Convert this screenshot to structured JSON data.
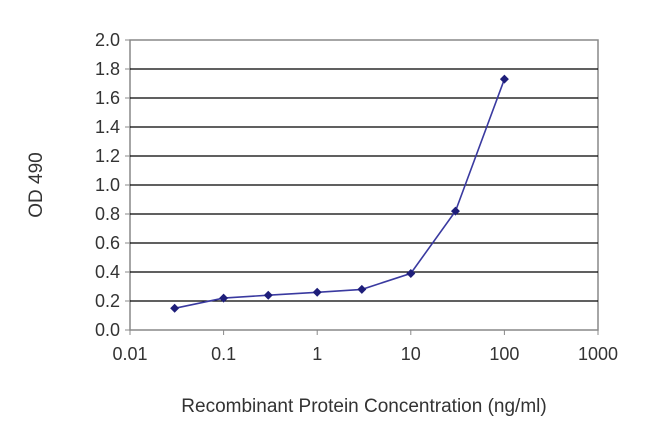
{
  "chart_data": {
    "type": "line",
    "xlabel": "Recombinant Protein Concentration (ng/ml)",
    "ylabel": "OD 490",
    "x_scale": "log",
    "xlim": [
      0.01,
      1000
    ],
    "ylim": [
      0.0,
      2.0
    ],
    "x_ticks": [
      0.01,
      0.1,
      1,
      10,
      100,
      1000
    ],
    "x_tick_labels": [
      "0.01",
      "0.1",
      "1",
      "10",
      "100",
      "1000"
    ],
    "y_ticks": [
      0.0,
      0.2,
      0.4,
      0.6,
      0.8,
      1.0,
      1.2,
      1.4,
      1.6,
      1.8,
      2.0
    ],
    "y_tick_labels": [
      "0.0",
      "0.2",
      "0.4",
      "0.6",
      "0.8",
      "1.0",
      "1.2",
      "1.4",
      "1.6",
      "1.8",
      "2.0"
    ],
    "grid": "horizontal",
    "series": [
      {
        "x": [
          0.03,
          0.1,
          0.3,
          1,
          3,
          10,
          30,
          100
        ],
        "y": [
          0.15,
          0.22,
          0.24,
          0.26,
          0.28,
          0.39,
          0.82,
          1.73
        ]
      }
    ],
    "colors": {
      "line": "#3a3aa0",
      "marker": "#1e1e7a",
      "grid": "#000000",
      "frame": "#888888"
    }
  }
}
